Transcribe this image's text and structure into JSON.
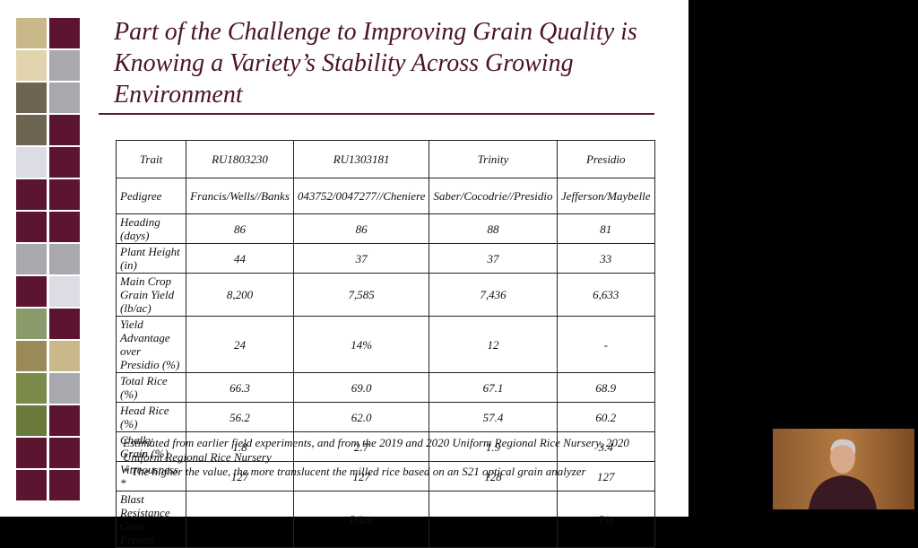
{
  "slide": {
    "title": "Part of the Challenge to Improving Grain Quality is Knowing a Variety’s Stability Across Growing Environment",
    "table": {
      "header": [
        "Trait",
        "RU1803230",
        "RU1303181",
        "Trinity",
        "Presidio"
      ],
      "rows": [
        [
          "Pedigree",
          "Francis/Wells//Banks",
          "043752/0047277//Cheniere",
          "Saber/Cocodrie//Presidio",
          "Jefferson/Maybelle"
        ],
        [
          "Heading (days)",
          "86",
          "86",
          "88",
          "81"
        ],
        [
          "Plant Height (in)",
          "44",
          "37",
          "37",
          "33"
        ],
        [
          "Main Crop Grain Yield (lb/ac)",
          "8,200",
          "7,585",
          "7,436",
          "6,633"
        ],
        [
          "Yield Advantage over Presidio (%)",
          "24",
          "14%",
          "12",
          "-"
        ],
        [
          "Total Rice (%)",
          "66.3",
          "69.0",
          "67.1",
          "68.9"
        ],
        [
          "Head Rice (%)",
          "56.2",
          "62.0",
          "57.4",
          "60.2"
        ],
        [
          "Chalky Grain (%)",
          "1.8",
          "2.7",
          "1.9",
          "3.4"
        ],
        [
          "Vitreousness *",
          "127",
          "127",
          "128",
          "127"
        ],
        [
          "Blast Resistance Gene Present",
          "",
          "Pikm",
          "",
          "Piz"
        ]
      ]
    },
    "notes": [
      "Estimated from earlier field experiments, and from the 2019 and 2020 Uniform Regional Rice Nursery, 2020 Uniform Regional Rice Nursery",
      "* The higher the value, the more translucent the milled rice based on an S21 optical grain analyzer"
    ]
  }
}
